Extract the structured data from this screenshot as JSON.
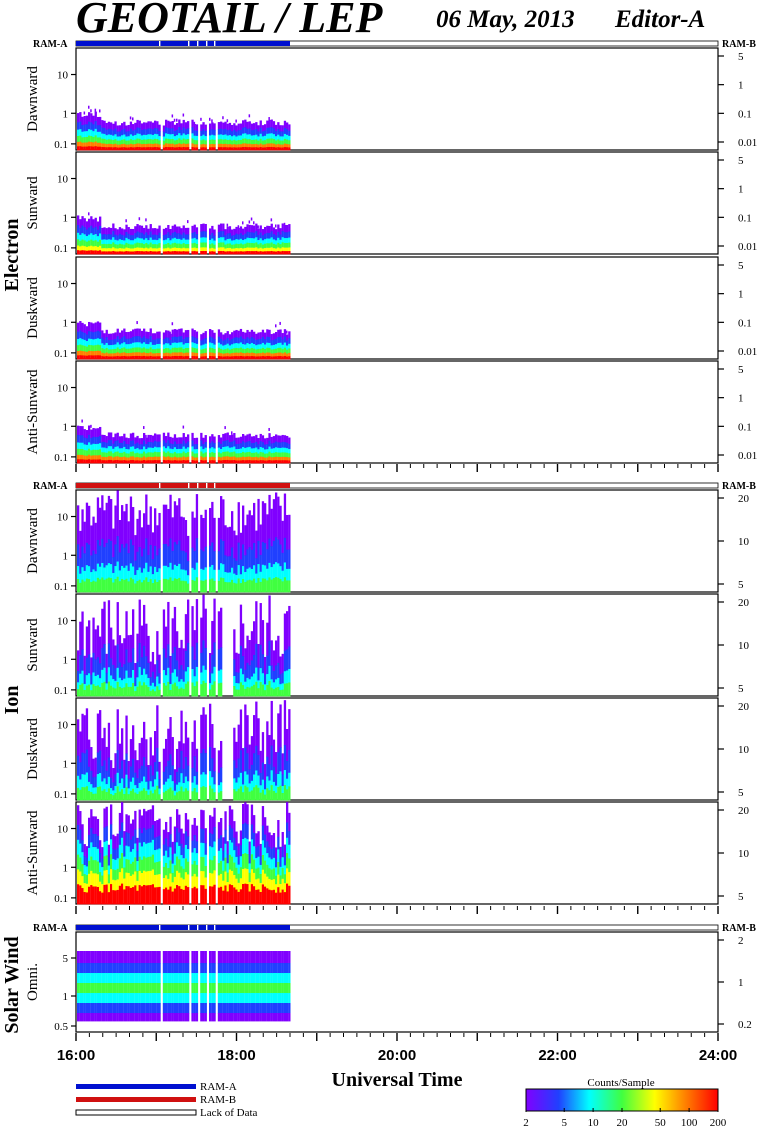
{
  "header": {
    "title": "GEOTAIL / LEP",
    "date": "06 May, 2013",
    "editor": "Editor-A"
  },
  "ram": {
    "a_label": "RAM-A",
    "b_label": "RAM-B"
  },
  "groups": [
    {
      "name": "Electron",
      "ram_mode": "RAM-A",
      "panels": [
        {
          "label": "Dawnward",
          "left_ticks": [
            "10",
            "1",
            "0.1"
          ],
          "right_ticks": [
            "5",
            "1",
            "0.1",
            "0.01"
          ]
        },
        {
          "label": "Sunward",
          "left_ticks": [
            "10",
            "1",
            "0.1"
          ],
          "right_ticks": [
            "5",
            "1",
            "0.1",
            "0.01"
          ]
        },
        {
          "label": "Duskward",
          "left_ticks": [
            "10",
            "1",
            "0.1"
          ],
          "right_ticks": [
            "5",
            "1",
            "0.1",
            "0.01"
          ]
        },
        {
          "label": "Anti-Sunward",
          "left_ticks": [
            "10",
            "1",
            "0.1"
          ],
          "right_ticks": [
            "5",
            "1",
            "0.1",
            "0.01"
          ]
        }
      ]
    },
    {
      "name": "Ion",
      "ram_mode": "RAM-B",
      "panels": [
        {
          "label": "Dawnward",
          "left_ticks": [
            "10",
            "1",
            "0.1"
          ],
          "right_ticks": [
            "20",
            "10",
            "5"
          ]
        },
        {
          "label": "Sunward",
          "left_ticks": [
            "10",
            "1",
            "0.1"
          ],
          "right_ticks": [
            "20",
            "10",
            "5"
          ]
        },
        {
          "label": "Duskward",
          "left_ticks": [
            "10",
            "1",
            "0.1"
          ],
          "right_ticks": [
            "20",
            "10",
            "5"
          ]
        },
        {
          "label": "Anti-Sunward",
          "left_ticks": [
            "10",
            "1",
            "0.1"
          ],
          "right_ticks": [
            "20",
            "10",
            "5"
          ]
        }
      ]
    },
    {
      "name": "Solar Wind",
      "ram_mode": "RAM-A",
      "panels": [
        {
          "label": "Omni.",
          "left_ticks": [
            "5",
            "1",
            "0.5"
          ],
          "right_ticks": [
            "2",
            "1",
            "0.2"
          ]
        }
      ]
    }
  ],
  "chart_data": {
    "type": "heatmap",
    "title": "GEOTAIL / LEP",
    "xlabel": "Universal Time",
    "x_ticks": [
      "16:00",
      "18:00",
      "20:00",
      "22:00",
      "24:00"
    ],
    "x_range": [
      "16:00",
      "24:00"
    ],
    "data_coverage": [
      "16:00",
      "18:40"
    ],
    "colorbar": {
      "title": "Counts/Sample",
      "ticks": [
        "2",
        "5",
        "10",
        "20",
        "50",
        "100",
        "200"
      ],
      "range": [
        2,
        200
      ],
      "scale": "log"
    },
    "legend": [
      "RAM-A",
      "RAM-B",
      "Lack of Data"
    ],
    "colors": {
      "ram_a": "#0010d0",
      "ram_b": "#d01010",
      "colormap": [
        "#8000ff",
        "#2040ff",
        "#00ffff",
        "#40ff40",
        "#ffff00",
        "#ff8000",
        "#ff0000"
      ]
    }
  }
}
